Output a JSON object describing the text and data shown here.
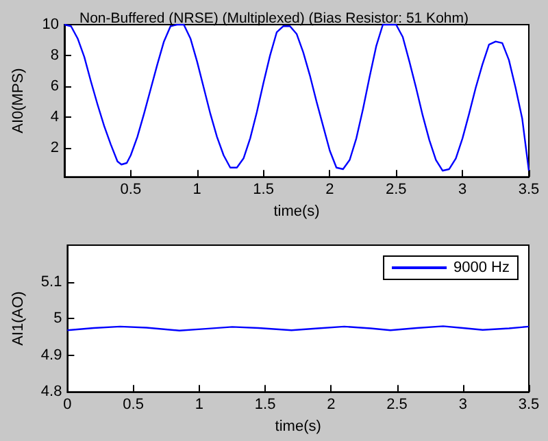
{
  "chart_data": [
    {
      "type": "line",
      "title": "Non-Buffered (NRSE) (Multiplexed) (Bias Resistor: 51 Kohm)",
      "xlabel": "time(s)",
      "ylabel": "AI0(MPS)",
      "xlim": [
        0,
        3.5
      ],
      "xticks": [
        0.5,
        1,
        1.5,
        2,
        2.5,
        3,
        3.5
      ],
      "ylim": [
        0.1,
        10
      ],
      "yticks": [
        2,
        4,
        6,
        8,
        10
      ],
      "grid": false,
      "legend": false,
      "marker": "none",
      "series": [
        {
          "color": "#0000ff",
          "x": [
            0,
            0.05,
            0.1,
            0.15,
            0.2,
            0.25,
            0.3,
            0.35,
            0.4,
            0.43,
            0.47,
            0.5,
            0.55,
            0.6,
            0.65,
            0.7,
            0.75,
            0.8,
            0.85,
            0.9,
            0.95,
            1.0,
            1.05,
            1.1,
            1.15,
            1.2,
            1.25,
            1.3,
            1.35,
            1.4,
            1.45,
            1.5,
            1.55,
            1.6,
            1.65,
            1.7,
            1.75,
            1.8,
            1.85,
            1.9,
            1.95,
            2.0,
            2.05,
            2.1,
            2.15,
            2.2,
            2.25,
            2.3,
            2.35,
            2.4,
            2.45,
            2.5,
            2.55,
            2.6,
            2.65,
            2.7,
            2.75,
            2.8,
            2.85,
            2.9,
            2.95,
            3.0,
            3.05,
            3.1,
            3.15,
            3.2,
            3.25,
            3.3,
            3.35,
            3.4,
            3.45,
            3.5
          ],
          "values": [
            10,
            9.9,
            9.1,
            7.9,
            6.3,
            4.8,
            3.4,
            2.2,
            1.1,
            0.9,
            1.0,
            1.5,
            2.7,
            4.2,
            5.8,
            7.4,
            8.9,
            9.9,
            10,
            10,
            9.1,
            7.6,
            5.9,
            4.2,
            2.7,
            1.5,
            0.7,
            0.7,
            1.3,
            2.6,
            4.3,
            6.2,
            8.0,
            9.5,
            9.9,
            9.9,
            9.4,
            8.2,
            6.7,
            5.0,
            3.4,
            1.8,
            0.7,
            0.6,
            1.2,
            2.6,
            4.5,
            6.6,
            8.6,
            10,
            10,
            10,
            9.2,
            7.6,
            5.9,
            4.1,
            2.5,
            1.2,
            0.5,
            0.6,
            1.3,
            2.6,
            4.2,
            5.9,
            7.4,
            8.7,
            8.9,
            8.8,
            7.7,
            5.9,
            3.9,
            0.5
          ]
        }
      ]
    },
    {
      "type": "line",
      "xlabel": "time(s)",
      "ylabel": "AI1(AO)",
      "xlim": [
        0,
        3.5
      ],
      "xticks": [
        0,
        0.5,
        1,
        1.5,
        2,
        2.5,
        3,
        3.5
      ],
      "ylim": [
        4.8,
        5.2
      ],
      "yticks": [
        4.8,
        4.9,
        5,
        5.1
      ],
      "grid": false,
      "legend": "top right",
      "marker": "none",
      "series": [
        {
          "name": "9000 Hz",
          "color": "#0000ff",
          "x": [
            0,
            0.2,
            0.4,
            0.6,
            0.85,
            1.05,
            1.25,
            1.45,
            1.7,
            1.9,
            2.1,
            2.3,
            2.45,
            2.65,
            2.85,
            3.0,
            3.15,
            3.35,
            3.5
          ],
          "values": [
            4.968,
            4.974,
            4.978,
            4.975,
            4.967,
            4.972,
            4.977,
            4.974,
            4.968,
            4.973,
            4.978,
            4.973,
            4.968,
            4.974,
            4.979,
            4.974,
            4.969,
            4.973,
            4.978
          ]
        }
      ]
    }
  ]
}
